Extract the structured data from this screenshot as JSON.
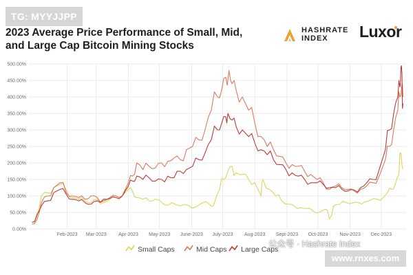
{
  "badge": {
    "text": "TG: MYYJJPP"
  },
  "title": {
    "line1": "2023 Average Price Performance of Small, Mid,",
    "line2": "and Large Cap Bitcoin Mining Stocks"
  },
  "logos": {
    "hashrate_line1": "HASHRATE",
    "hashrate_line2": "INDEX",
    "luxor": "Luxor"
  },
  "watermark": {
    "text": "公众号 · Hashrate Index",
    "url": "www.rnxes.com"
  },
  "colors": {
    "small": "#dcd45a",
    "mid": "#d97a5c",
    "large": "#b93a36",
    "grid": "#e2e2e2",
    "accent": "#e8a23a"
  },
  "chart_data": {
    "type": "line",
    "title": "2023 Average Price Performance of Small, Mid, and Large Cap Bitcoin Mining Stocks",
    "xlabel": "",
    "ylabel": "",
    "ylim": [
      0,
      500
    ],
    "y_ticks": [
      "0.00%",
      "50.00%",
      "100.00%",
      "150.00%",
      "200.00%",
      "250.00%",
      "300.00%",
      "350.00%",
      "400.00%",
      "450.00%",
      "500.00%"
    ],
    "x_ticks": [
      "Feb-2023",
      "Mar-2023",
      "Apr-2023",
      "May-2023",
      "June-2023",
      "July-2023",
      "Aug-2023",
      "Sept-2023",
      "Oct-2023",
      "Nov-2023",
      "Dec-2023"
    ],
    "x_tick_days": [
      37,
      65,
      96,
      126,
      157,
      187,
      218,
      249,
      279,
      310,
      340
    ],
    "legend": {
      "placement": "bottom-center"
    },
    "grid": true,
    "series": [
      {
        "name": "Small Caps",
        "key": "small",
        "points": [
          [
            3,
            20
          ],
          [
            8,
            40
          ],
          [
            12,
            100
          ],
          [
            18,
            110
          ],
          [
            24,
            125
          ],
          [
            30,
            135
          ],
          [
            36,
            118
          ],
          [
            42,
            95
          ],
          [
            48,
            90
          ],
          [
            54,
            85
          ],
          [
            60,
            80
          ],
          [
            66,
            90
          ],
          [
            72,
            80
          ],
          [
            78,
            90
          ],
          [
            84,
            95
          ],
          [
            90,
            100
          ],
          [
            96,
            120
          ],
          [
            100,
            115
          ],
          [
            104,
            95
          ],
          [
            110,
            90
          ],
          [
            116,
            85
          ],
          [
            122,
            90
          ],
          [
            130,
            75
          ],
          [
            138,
            80
          ],
          [
            146,
            70
          ],
          [
            154,
            72
          ],
          [
            160,
            65
          ],
          [
            168,
            80
          ],
          [
            174,
            75
          ],
          [
            178,
            70
          ],
          [
            184,
            120
          ],
          [
            188,
            150
          ],
          [
            192,
            175
          ],
          [
            196,
            190
          ],
          [
            200,
            170
          ],
          [
            206,
            165
          ],
          [
            212,
            150
          ],
          [
            218,
            140
          ],
          [
            224,
            100
          ],
          [
            226,
            150
          ],
          [
            232,
            120
          ],
          [
            238,
            100
          ],
          [
            244,
            85
          ],
          [
            250,
            75
          ],
          [
            256,
            70
          ],
          [
            262,
            65
          ],
          [
            268,
            62
          ],
          [
            274,
            55
          ],
          [
            280,
            50
          ],
          [
            286,
            60
          ],
          [
            290,
            30
          ],
          [
            294,
            70
          ],
          [
            300,
            75
          ],
          [
            306,
            80
          ],
          [
            312,
            78
          ],
          [
            318,
            80
          ],
          [
            324,
            82
          ],
          [
            330,
            88
          ],
          [
            336,
            90
          ],
          [
            342,
            95
          ],
          [
            346,
            110
          ],
          [
            350,
            120
          ],
          [
            354,
            140
          ],
          [
            357,
            165
          ],
          [
            359,
            230
          ],
          [
            361,
            180
          ]
        ]
      },
      {
        "name": "Mid Caps",
        "key": "mid",
        "points": [
          [
            3,
            15
          ],
          [
            8,
            30
          ],
          [
            12,
            80
          ],
          [
            18,
            100
          ],
          [
            24,
            125
          ],
          [
            30,
            140
          ],
          [
            36,
            110
          ],
          [
            42,
            100
          ],
          [
            48,
            95
          ],
          [
            54,
            90
          ],
          [
            60,
            100
          ],
          [
            66,
            95
          ],
          [
            72,
            85
          ],
          [
            78,
            95
          ],
          [
            84,
            100
          ],
          [
            90,
            100
          ],
          [
            96,
            140
          ],
          [
            100,
            160
          ],
          [
            104,
            200
          ],
          [
            110,
            180
          ],
          [
            116,
            190
          ],
          [
            122,
            185
          ],
          [
            128,
            200
          ],
          [
            134,
            205
          ],
          [
            140,
            215
          ],
          [
            146,
            210
          ],
          [
            152,
            240
          ],
          [
            158,
            250
          ],
          [
            164,
            270
          ],
          [
            170,
            300
          ],
          [
            176,
            360
          ],
          [
            182,
            400
          ],
          [
            186,
            420
          ],
          [
            190,
            460
          ],
          [
            193,
            480
          ],
          [
            196,
            440
          ],
          [
            200,
            420
          ],
          [
            206,
            400
          ],
          [
            212,
            360
          ],
          [
            218,
            320
          ],
          [
            224,
            280
          ],
          [
            230,
            250
          ],
          [
            236,
            240
          ],
          [
            242,
            220
          ],
          [
            248,
            200
          ],
          [
            254,
            195
          ],
          [
            260,
            190
          ],
          [
            266,
            175
          ],
          [
            272,
            165
          ],
          [
            278,
            150
          ],
          [
            284,
            140
          ],
          [
            290,
            120
          ],
          [
            296,
            130
          ],
          [
            302,
            125
          ],
          [
            308,
            120
          ],
          [
            314,
            115
          ],
          [
            320,
            120
          ],
          [
            326,
            130
          ],
          [
            332,
            140
          ],
          [
            338,
            160
          ],
          [
            344,
            210
          ],
          [
            348,
            250
          ],
          [
            352,
            300
          ],
          [
            356,
            360
          ],
          [
            358,
            400
          ],
          [
            360,
            440
          ],
          [
            361,
            400
          ]
        ]
      },
      {
        "name": "Large Caps",
        "key": "large",
        "points": [
          [
            3,
            20
          ],
          [
            8,
            45
          ],
          [
            12,
            70
          ],
          [
            18,
            85
          ],
          [
            24,
            110
          ],
          [
            30,
            120
          ],
          [
            36,
            105
          ],
          [
            42,
            90
          ],
          [
            48,
            85
          ],
          [
            54,
            80
          ],
          [
            60,
            75
          ],
          [
            66,
            85
          ],
          [
            72,
            90
          ],
          [
            78,
            92
          ],
          [
            84,
            95
          ],
          [
            90,
            100
          ],
          [
            96,
            130
          ],
          [
            100,
            145
          ],
          [
            104,
            160
          ],
          [
            110,
            150
          ],
          [
            116,
            155
          ],
          [
            122,
            145
          ],
          [
            128,
            150
          ],
          [
            134,
            160
          ],
          [
            140,
            155
          ],
          [
            146,
            175
          ],
          [
            152,
            180
          ],
          [
            158,
            190
          ],
          [
            164,
            210
          ],
          [
            170,
            230
          ],
          [
            176,
            270
          ],
          [
            182,
            300
          ],
          [
            186,
            320
          ],
          [
            190,
            340
          ],
          [
            192,
            350
          ],
          [
            196,
            330
          ],
          [
            200,
            310
          ],
          [
            206,
            300
          ],
          [
            212,
            280
          ],
          [
            218,
            260
          ],
          [
            224,
            240
          ],
          [
            230,
            225
          ],
          [
            236,
            210
          ],
          [
            242,
            195
          ],
          [
            248,
            180
          ],
          [
            254,
            170
          ],
          [
            260,
            160
          ],
          [
            266,
            150
          ],
          [
            272,
            140
          ],
          [
            278,
            140
          ],
          [
            284,
            135
          ],
          [
            290,
            125
          ],
          [
            296,
            125
          ],
          [
            302,
            120
          ],
          [
            308,
            115
          ],
          [
            314,
            118
          ],
          [
            320,
            125
          ],
          [
            326,
            140
          ],
          [
            332,
            150
          ],
          [
            338,
            180
          ],
          [
            344,
            240
          ],
          [
            348,
            300
          ],
          [
            352,
            350
          ],
          [
            356,
            400
          ],
          [
            358,
            430
          ],
          [
            359,
            490
          ],
          [
            360,
            470
          ],
          [
            361,
            380
          ]
        ]
      }
    ]
  }
}
